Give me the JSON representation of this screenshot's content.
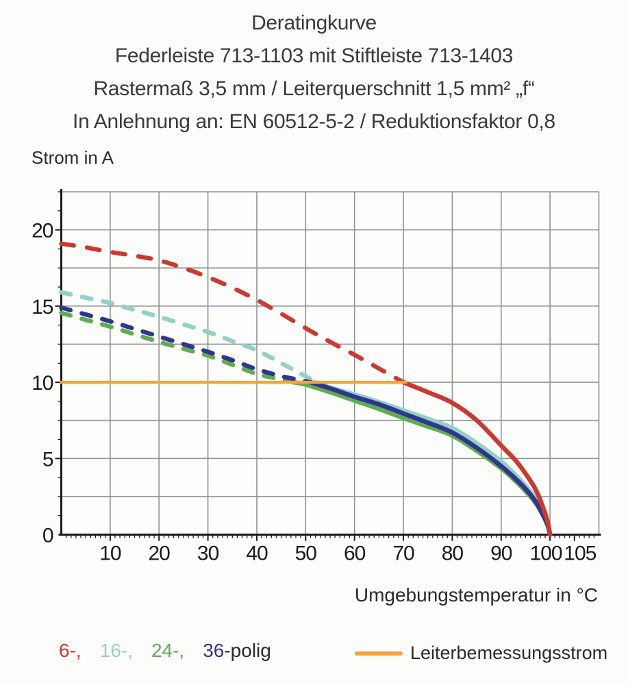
{
  "title": {
    "line1": "Deratingkurve",
    "line2": "Federleiste 713-1103 mit Stiftleiste 713-1403",
    "line3": "Rastermaß 3,5 mm / Leiterquerschnitt 1,5 mm² „f“",
    "line4": "In Anlehnung an: EN 60512-5-2 / Reduktionsfaktor 0,8"
  },
  "chart_data": {
    "type": "line",
    "title": "Deratingkurve",
    "ylabel": "Strom in A",
    "xlabel": "Umgebungstemperatur in °C",
    "xlim": [
      0,
      110
    ],
    "ylim": [
      0,
      22.5
    ],
    "x_tick_labels": [
      10,
      20,
      30,
      40,
      50,
      60,
      70,
      80,
      90,
      100,
      105
    ],
    "y_tick_labels": [
      0,
      5,
      10,
      15,
      20
    ],
    "x_grid_step": 10,
    "y_grid_step": 2.5,
    "x_minor_tick_step": 1,
    "y_minor_tick_step": 1.25,
    "grid": true,
    "line_style_note": "curves dashed above rated current (10 A), solid below",
    "series": [
      {
        "name": "6-polig",
        "color": "#cb3a31",
        "solid_from_x": 70,
        "points": [
          [
            0,
            19.1
          ],
          [
            5,
            18.85
          ],
          [
            10,
            18.55
          ],
          [
            15,
            18.3
          ],
          [
            20,
            18.0
          ],
          [
            25,
            17.5
          ],
          [
            30,
            16.9
          ],
          [
            35,
            16.2
          ],
          [
            40,
            15.4
          ],
          [
            45,
            14.5
          ],
          [
            50,
            13.55
          ],
          [
            55,
            12.65
          ],
          [
            60,
            11.8
          ],
          [
            65,
            10.9
          ],
          [
            70,
            10.0
          ],
          [
            75,
            9.35
          ],
          [
            80,
            8.65
          ],
          [
            85,
            7.5
          ],
          [
            90,
            5.85
          ],
          [
            93,
            4.85
          ],
          [
            95,
            4.0
          ],
          [
            97,
            3.0
          ],
          [
            98.5,
            1.85
          ],
          [
            99.5,
            0.85
          ],
          [
            100,
            0
          ]
        ]
      },
      {
        "name": "16-polig",
        "color": "#94cfc8",
        "solid_from_x": 52,
        "points": [
          [
            0,
            15.9
          ],
          [
            5,
            15.55
          ],
          [
            10,
            15.2
          ],
          [
            15,
            14.75
          ],
          [
            20,
            14.3
          ],
          [
            25,
            13.8
          ],
          [
            30,
            13.3
          ],
          [
            35,
            12.7
          ],
          [
            40,
            12.1
          ],
          [
            45,
            11.25
          ],
          [
            50,
            10.4
          ],
          [
            52,
            10.0
          ],
          [
            55,
            9.65
          ],
          [
            60,
            9.2
          ],
          [
            65,
            8.7
          ],
          [
            70,
            8.15
          ],
          [
            75,
            7.6
          ],
          [
            80,
            7.0
          ],
          [
            85,
            6.0
          ],
          [
            90,
            4.8
          ],
          [
            93,
            3.9
          ],
          [
            95,
            3.2
          ],
          [
            97,
            2.4
          ],
          [
            98.5,
            1.5
          ],
          [
            99.5,
            0.7
          ],
          [
            100,
            0
          ]
        ]
      },
      {
        "name": "24-polig",
        "color": "#5ead50",
        "solid_from_x": 47.5,
        "points": [
          [
            0,
            14.55
          ],
          [
            5,
            14.1
          ],
          [
            10,
            13.65
          ],
          [
            15,
            13.15
          ],
          [
            20,
            12.65
          ],
          [
            25,
            12.2
          ],
          [
            30,
            11.75
          ],
          [
            35,
            11.15
          ],
          [
            40,
            10.55
          ],
          [
            44,
            10.25
          ],
          [
            47.5,
            10.0
          ],
          [
            50,
            9.85
          ],
          [
            55,
            9.35
          ],
          [
            60,
            8.8
          ],
          [
            65,
            8.25
          ],
          [
            70,
            7.65
          ],
          [
            75,
            7.1
          ],
          [
            80,
            6.5
          ],
          [
            85,
            5.5
          ],
          [
            90,
            4.35
          ],
          [
            93,
            3.5
          ],
          [
            95,
            2.85
          ],
          [
            97,
            2.1
          ],
          [
            98.5,
            1.3
          ],
          [
            99.5,
            0.6
          ],
          [
            100,
            0
          ]
        ]
      },
      {
        "name": "36-polig",
        "color": "#333390",
        "solid_from_x": 51,
        "points": [
          [
            0,
            14.9
          ],
          [
            5,
            14.45
          ],
          [
            10,
            14.0
          ],
          [
            15,
            13.5
          ],
          [
            20,
            13.0
          ],
          [
            25,
            12.5
          ],
          [
            30,
            12.0
          ],
          [
            35,
            11.45
          ],
          [
            40,
            10.85
          ],
          [
            45,
            10.4
          ],
          [
            48,
            10.2
          ],
          [
            51,
            10.0
          ],
          [
            55,
            9.6
          ],
          [
            60,
            9.05
          ],
          [
            65,
            8.55
          ],
          [
            70,
            7.95
          ],
          [
            75,
            7.35
          ],
          [
            80,
            6.7
          ],
          [
            85,
            5.7
          ],
          [
            90,
            4.5
          ],
          [
            93,
            3.65
          ],
          [
            95,
            3.0
          ],
          [
            97,
            2.2
          ],
          [
            98.5,
            1.35
          ],
          [
            99.5,
            0.65
          ],
          [
            100,
            0
          ]
        ]
      }
    ],
    "rated_current_line": {
      "label": "Leiterbemessungsstrom",
      "color": "#f2a53b",
      "y": 10,
      "x_start": 0,
      "x_end": 70.5
    }
  },
  "legend": {
    "pole_items": [
      {
        "label": "6-,",
        "color": "#cb3a31"
      },
      {
        "label": "16-,",
        "color": "#94cfc8"
      },
      {
        "label": "24-,",
        "color": "#5ead50"
      },
      {
        "label": "36",
        "color": "#333390"
      }
    ],
    "suffix": "-polig",
    "rated": {
      "label": "Leiterbemessungsstrom",
      "color": "#f2a53b"
    }
  },
  "colors": {
    "grid": "#909294",
    "axis": "#1b1b1b",
    "tick_label": "#1a1a1a",
    "title_text": "#3a3a3a"
  }
}
